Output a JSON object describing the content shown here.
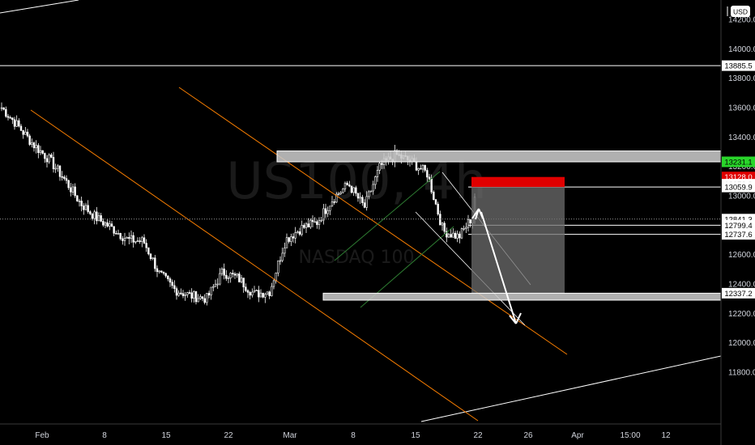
{
  "currency": "USD",
  "colors": {
    "background": "#000000",
    "candle_up": "#ffffff",
    "candle_down": "#ffffff",
    "channel": "#f57c00",
    "wedge": "#2e7d32",
    "horizontal": "#ffffff",
    "zone": "#c8c8c8",
    "stop": "#e00000",
    "target_box": "#6e6e6e",
    "current_price_bg": "#29d52a"
  },
  "watermark": {
    "symbol": "US100, 4h",
    "description": "NASDAQ 100"
  },
  "chart_data": {
    "type": "candlestick",
    "ylim": [
      11690,
      14400
    ],
    "y_ticks": [
      14200,
      14000,
      13800,
      13600,
      13400,
      13200,
      13000,
      12800,
      12600,
      12400,
      12200,
      12000,
      11800
    ],
    "y_tick_labels": [
      "14200.0",
      "14000.0",
      "13800.0",
      "13600.0",
      "13400.0",
      "13200.0",
      "13000.0",
      "12800.0",
      "12600.0",
      "12400.0",
      "12200.0",
      "12000.0",
      "11800.0"
    ],
    "x_tick_labels": [
      "Feb",
      "8",
      "15",
      "22",
      "Mar",
      "8",
      "15",
      "22",
      "26",
      "Apr",
      "15:00",
      "12"
    ],
    "price_badges": [
      {
        "label": "13885.5",
        "value": 13885.5,
        "style": "white"
      },
      {
        "label": "13231.1",
        "value": 13231.1,
        "style": "green"
      },
      {
        "label": "13128.0",
        "value": 13128.0,
        "style": "red"
      },
      {
        "label": "13078.8",
        "value": 13078.8,
        "style": "white"
      },
      {
        "label": "13059.9",
        "value": 13059.9,
        "style": "white"
      },
      {
        "label": "12841.3",
        "value": 12841.3,
        "style": "white"
      },
      {
        "label": "12799.4",
        "value": 12799.4,
        "style": "white"
      },
      {
        "label": "12737.6",
        "value": 12737.6,
        "style": "white"
      },
      {
        "label": "12337.2",
        "value": 12337.2,
        "style": "white"
      }
    ],
    "horizontal_levels": [
      13885.5,
      13059.9,
      12799.4,
      12737.6
    ],
    "dotted_level": 12841.3,
    "zones": [
      {
        "name": "resistance",
        "from": 13231.1,
        "to": 13305
      },
      {
        "name": "support",
        "from": 12290,
        "to": 12337.2
      }
    ],
    "short_position": {
      "stop_from": 13059.9,
      "stop_to": 13128.0,
      "target": 12337.2
    },
    "anchor_prices": [
      13600,
      13480,
      13350,
      13250,
      13110,
      12950,
      12850,
      12780,
      12700,
      12690,
      12470,
      12360,
      12320,
      12300,
      12480,
      12440,
      12330,
      12350,
      12700,
      12780,
      12820,
      12980,
      13080,
      12920,
      13200,
      13280,
      13230,
      13150,
      12760,
      12720,
      12880
    ],
    "last_close": 12990
  }
}
